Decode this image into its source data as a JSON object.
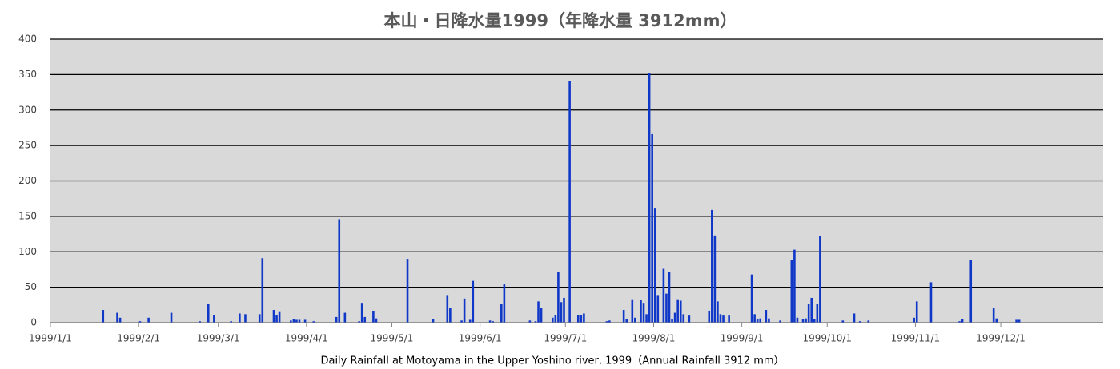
{
  "chart_data": {
    "type": "bar",
    "title": "本山・日降水量1999（年降水量 3912mm）",
    "xlabel": "Daily Rainfall at Motoyama in the Upper Yoshino river, 1999（Annual Rainfall 3912 mm）",
    "color": "#1038c8",
    "grid": true,
    "ylim": [
      0,
      400
    ],
    "yticks": [
      0,
      50,
      100,
      150,
      200,
      250,
      300,
      350,
      400
    ],
    "xlim": [
      "1999/1/1",
      "2000/1/6"
    ],
    "xticks": [
      "1999/1/1",
      "1999/2/1",
      "1999/3/1",
      "1999/4/1",
      "1999/5/1",
      "1999/6/1",
      "1999/7/1",
      "1999/8/1",
      "1999/9/1",
      "1999/10/1",
      "1999/11/1",
      "1999/12/1"
    ],
    "x": [
      "1999/1/19",
      "1999/1/24",
      "1999/1/25",
      "1999/2/1",
      "1999/2/4",
      "1999/2/12",
      "1999/2/22",
      "1999/2/25",
      "1999/2/27",
      "1999/3/5",
      "1999/3/8",
      "1999/3/10",
      "1999/3/15",
      "1999/3/16",
      "1999/3/20",
      "1999/3/21",
      "1999/3/22",
      "1999/3/26",
      "1999/3/27",
      "1999/3/28",
      "1999/3/29",
      "1999/3/31",
      "1999/4/3",
      "1999/4/11",
      "1999/4/12",
      "1999/4/14",
      "1999/4/19",
      "1999/4/20",
      "1999/4/21",
      "1999/4/24",
      "1999/4/25",
      "1999/5/6",
      "1999/5/15",
      "1999/5/20",
      "1999/5/21",
      "1999/5/25",
      "1999/5/26",
      "1999/5/28",
      "1999/5/29",
      "1999/6/4",
      "1999/6/5",
      "1999/6/8",
      "1999/6/9",
      "1999/6/18",
      "1999/6/20",
      "1999/6/21",
      "1999/6/22",
      "1999/6/26",
      "1999/6/27",
      "1999/6/28",
      "1999/6/29",
      "1999/6/30",
      "1999/7/2",
      "1999/7/5",
      "1999/7/6",
      "1999/7/7",
      "1999/7/15",
      "1999/7/16",
      "1999/7/21",
      "1999/7/22",
      "1999/7/24",
      "1999/7/25",
      "1999/7/27",
      "1999/7/28",
      "1999/7/29",
      "1999/7/30",
      "1999/7/31",
      "1999/8/1",
      "1999/8/2",
      "1999/8/4",
      "1999/8/5",
      "1999/8/6",
      "1999/8/7",
      "1999/8/8",
      "1999/8/9",
      "1999/8/10",
      "1999/8/11",
      "1999/8/13",
      "1999/8/20",
      "1999/8/21",
      "1999/8/22",
      "1999/8/23",
      "1999/8/24",
      "1999/8/25",
      "1999/8/27",
      "1999/9/4",
      "1999/9/5",
      "1999/9/6",
      "1999/9/7",
      "1999/9/9",
      "1999/9/10",
      "1999/9/14",
      "1999/9/18",
      "1999/9/19",
      "1999/9/20",
      "1999/9/22",
      "1999/9/23",
      "1999/9/24",
      "1999/9/25",
      "1999/9/26",
      "1999/9/27",
      "1999/9/28",
      "1999/10/6",
      "1999/10/10",
      "1999/10/12",
      "1999/10/15",
      "1999/10/31",
      "1999/11/1",
      "1999/11/6",
      "1999/11/16",
      "1999/11/17",
      "1999/11/20",
      "1999/11/28",
      "1999/11/29",
      "1999/12/6",
      "1999/12/7"
    ],
    "values": [
      18,
      14,
      7,
      2,
      7,
      14,
      2,
      26,
      11,
      2,
      13,
      12,
      12,
      91,
      18,
      11,
      15,
      3,
      5,
      4,
      4,
      4,
      2,
      8,
      146,
      14,
      2,
      28,
      8,
      16,
      6,
      90,
      5,
      39,
      21,
      3,
      34,
      4,
      59,
      3,
      2,
      27,
      54,
      3,
      2,
      30,
      21,
      7,
      11,
      72,
      29,
      35,
      341,
      11,
      11,
      13,
      2,
      3,
      18,
      5,
      33,
      7,
      32,
      28,
      12,
      352,
      266,
      161,
      39,
      76,
      41,
      71,
      5,
      14,
      33,
      31,
      12,
      10,
      17,
      159,
      123,
      30,
      12,
      10,
      10,
      68,
      12,
      5,
      6,
      18,
      6,
      3,
      89,
      103,
      7,
      5,
      6,
      26,
      35,
      5,
      26,
      122,
      3,
      13,
      2,
      3,
      7,
      30,
      57,
      2,
      5,
      89,
      21,
      6,
      4,
      4
    ]
  }
}
